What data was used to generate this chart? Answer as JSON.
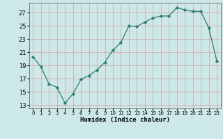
{
  "x": [
    0,
    1,
    2,
    3,
    4,
    5,
    6,
    7,
    8,
    9,
    10,
    11,
    12,
    13,
    14,
    15,
    16,
    17,
    18,
    19,
    20,
    21,
    22,
    23
  ],
  "y": [
    20.3,
    18.8,
    16.2,
    15.7,
    13.3,
    14.7,
    16.9,
    17.5,
    18.3,
    19.5,
    21.3,
    22.5,
    25.0,
    24.9,
    25.6,
    26.2,
    26.5,
    26.5,
    27.8,
    27.4,
    27.2,
    27.2,
    24.7,
    19.7
  ],
  "line_color": "#2e7d6e",
  "marker": "D",
  "marker_size": 2.2,
  "bg_color": "#cce8e8",
  "grid_color_v": "#d8a8a8",
  "grid_color_h": "#d8a8a8",
  "xlabel": "Humidex (Indice chaleur)",
  "ylabel_ticks": [
    13,
    15,
    17,
    19,
    21,
    23,
    25,
    27
  ],
  "xlim": [
    -0.5,
    23.5
  ],
  "ylim": [
    12.5,
    28.5
  ],
  "xtick_labels": [
    "0",
    "1",
    "2",
    "3",
    "4",
    "5",
    "6",
    "7",
    "8",
    "9",
    "10",
    "11",
    "12",
    "13",
    "14",
    "15",
    "16",
    "17",
    "18",
    "19",
    "20",
    "21",
    "22",
    "23"
  ]
}
